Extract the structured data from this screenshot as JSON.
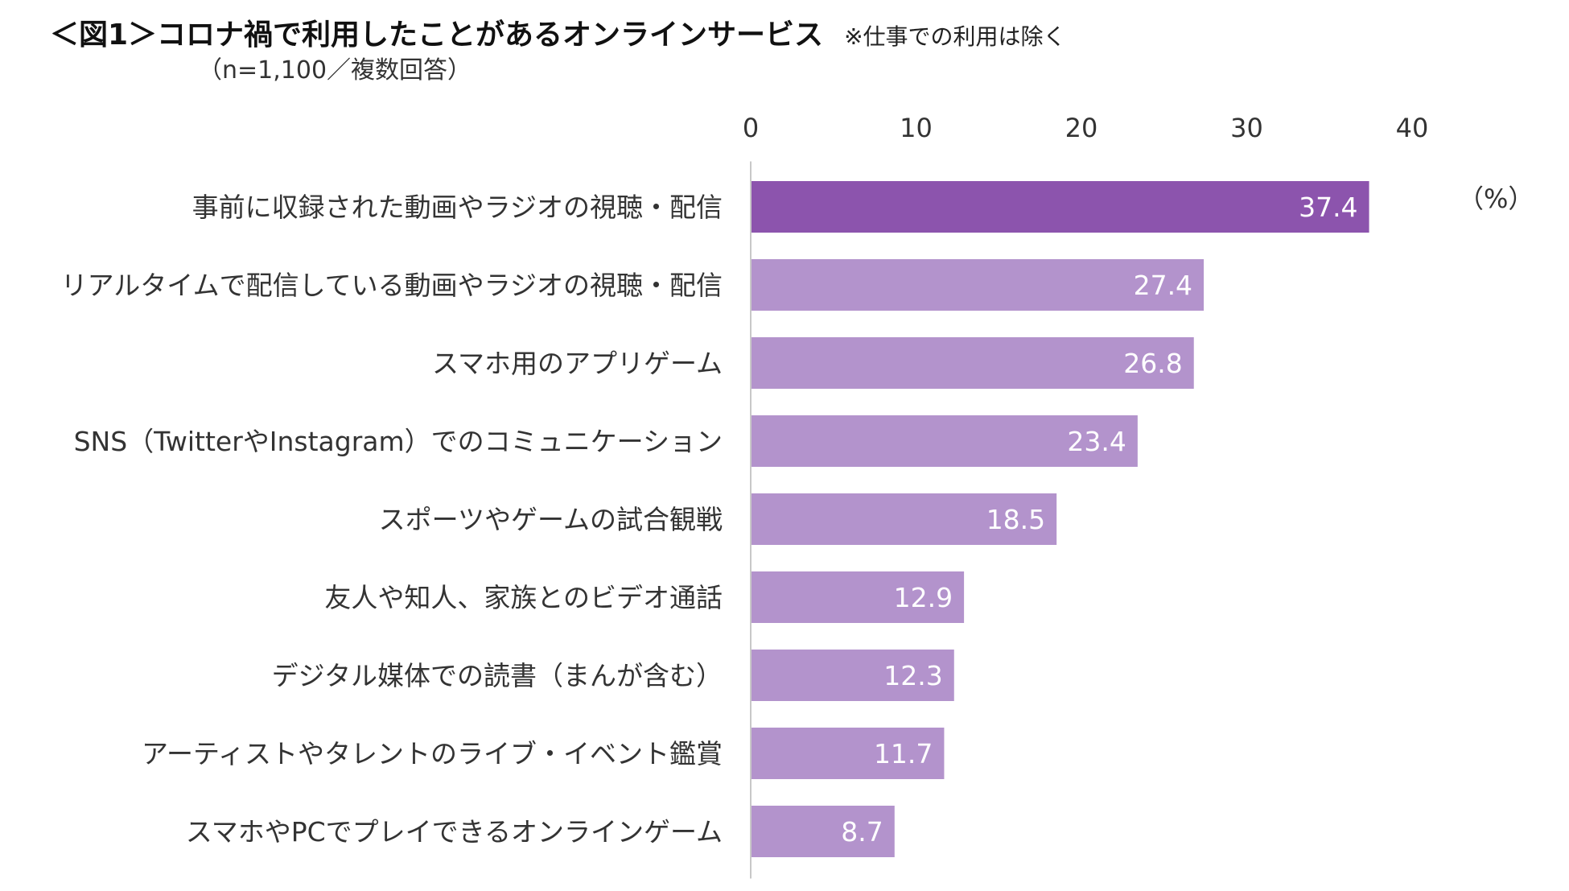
{
  "header": {
    "title": "＜図1＞コロナ禍で利用したことがあるオンラインサービス",
    "note": "※仕事での利用は除く",
    "subtitle": "（n=1,100／複数回答）"
  },
  "chart_data": {
    "type": "bar",
    "orientation": "horizontal",
    "unit_label": "（%）",
    "categories": [
      "事前に収録された動画やラジオの視聴・配信",
      "リアルタイムで配信している動画やラジオの視聴・配信",
      "スマホ用のアプリゲーム",
      "SNS（TwitterやInstagram）でのコミュニケーション",
      "スポーツやゲームの試合観戦",
      "友人や知人、家族とのビデオ通話",
      "デジタル媒体での読書（まんが含む）",
      "アーティストやタレントのライブ・イベント鑑賞",
      "スマホやPCでプレイできるオンラインゲーム"
    ],
    "values": [
      37.4,
      27.4,
      26.8,
      23.4,
      18.5,
      12.9,
      12.3,
      11.7,
      8.7
    ],
    "value_labels": [
      "37.4",
      "27.4",
      "26.8",
      "23.4",
      "18.5",
      "12.9",
      "12.3",
      "11.7",
      "8.7"
    ],
    "xlim": [
      0,
      40
    ],
    "ticks": [
      0,
      10,
      20,
      30,
      40
    ],
    "tick_labels": [
      "0",
      "10",
      "20",
      "30",
      "40"
    ],
    "colors": {
      "highlight": "#8c54ad",
      "bar": "#b393cc",
      "axis": "#c8c8c8"
    }
  }
}
